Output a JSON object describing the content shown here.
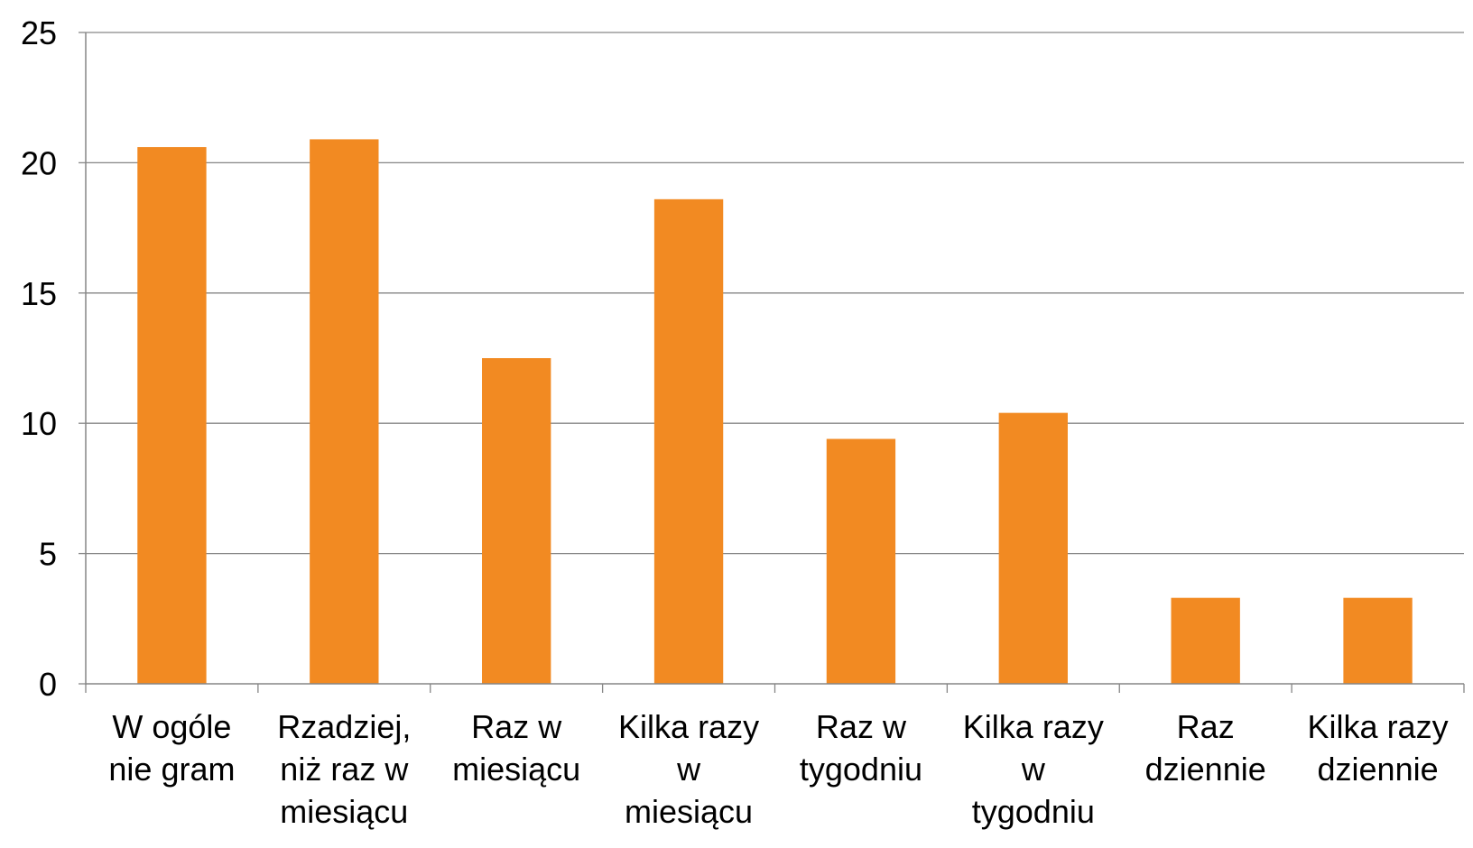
{
  "chart_data": {
    "type": "bar",
    "title": "",
    "xlabel": "",
    "ylabel": "",
    "categories": [
      [
        "W ogóle",
        "nie gram"
      ],
      [
        "Rzadziej,",
        "niż raz w",
        "miesiącu"
      ],
      [
        "Raz w",
        "miesiącu"
      ],
      [
        "Kilka razy",
        "w",
        "miesiącu"
      ],
      [
        "Raz w",
        "tygodniu"
      ],
      [
        "Kilka razy",
        "w",
        "tygodniu"
      ],
      [
        "Raz",
        "dziennie"
      ],
      [
        "Kilka razy",
        "dziennie"
      ]
    ],
    "values": [
      20.6,
      20.9,
      12.5,
      18.6,
      9.4,
      10.4,
      3.3,
      3.3
    ],
    "ylim": [
      0,
      25
    ],
    "yticks": [
      0,
      5,
      10,
      15,
      20,
      25
    ],
    "grid": true,
    "legend": "none",
    "bar_color": "#F28A22",
    "grid_color": "#868686",
    "axis_color": "#868686"
  }
}
